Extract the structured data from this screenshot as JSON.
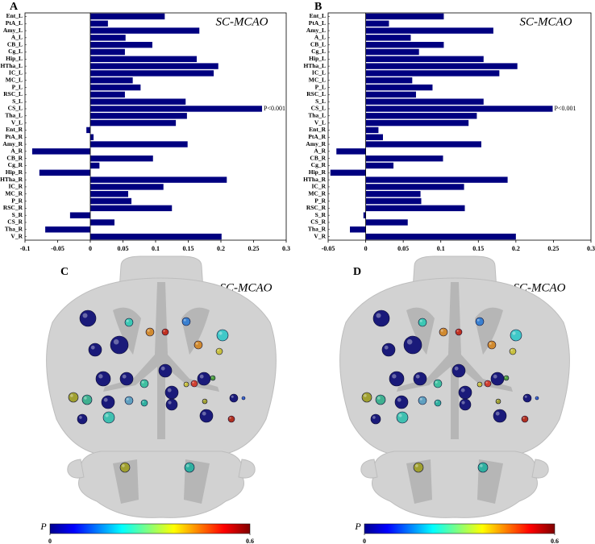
{
  "chart_data": [
    {
      "type": "bar",
      "orientation": "horizontal",
      "panel": "A",
      "annotation": "SC-MCAO",
      "significance": "P<0.001",
      "color": "#000080",
      "categories": [
        "Ent_L",
        "PtA_L",
        "Amy_L",
        "A_L",
        "CB_L",
        "Cg_L",
        "Hip_L",
        "HTha_L",
        "IC_L",
        "MC_L",
        "P_L",
        "RSC_L",
        "S_L",
        "CS_L",
        "Tha_L",
        "V_L",
        "Ent_R",
        "PtA_R",
        "Amy_R",
        "A_R",
        "CB_R",
        "Cg_R",
        "Hip_R",
        "HTha_R",
        "IC_R",
        "MC_R",
        "P_R",
        "RSC_R",
        "S_R",
        "CS_R",
        "Tha_R",
        "V_R"
      ],
      "values": [
        0.114,
        0.027,
        0.167,
        0.054,
        0.095,
        0.053,
        0.163,
        0.196,
        0.189,
        0.065,
        0.077,
        0.053,
        0.146,
        0.263,
        0.148,
        0.131,
        -0.006,
        0.005,
        0.149,
        -0.089,
        0.096,
        0.014,
        -0.078,
        0.209,
        0.112,
        0.058,
        0.063,
        0.125,
        -0.031,
        0.037,
        -0.069,
        0.201
      ],
      "xlim": [
        -0.1,
        0.3
      ],
      "xticks": [
        -0.1,
        -0.05,
        0,
        0.05,
        0.1,
        0.15,
        0.2,
        0.25,
        0.3
      ]
    },
    {
      "type": "bar",
      "orientation": "horizontal",
      "panel": "B",
      "annotation": "SC-MCAO",
      "significance": "P<0.001",
      "color": "#000080",
      "categories": [
        "Ent_L",
        "PtA_L",
        "Amy_L",
        "A_L",
        "CB_L",
        "Cg_L",
        "Hip_L",
        "HTha_L",
        "IC_L",
        "MC_L",
        "P_L",
        "RSC_L",
        "S_L",
        "CS_L",
        "Tha_L",
        "V_L",
        "Ent_R",
        "PtA_R",
        "Amy_R",
        "A_R",
        "CB_R",
        "Cg_R",
        "Hip_R",
        "HTha_R",
        "IC_R",
        "MC_R",
        "P_R",
        "RSC_R",
        "S_R",
        "CS_R",
        "Tha_R",
        "V_R"
      ],
      "values": [
        0.104,
        0.031,
        0.17,
        0.06,
        0.104,
        0.071,
        0.157,
        0.202,
        0.178,
        0.062,
        0.089,
        0.067,
        0.157,
        0.249,
        0.148,
        0.137,
        0.017,
        0.023,
        0.154,
        -0.039,
        0.103,
        0.037,
        -0.047,
        0.189,
        0.131,
        0.073,
        0.074,
        0.132,
        -0.003,
        0.056,
        -0.021,
        0.2
      ],
      "xlim": [
        -0.05,
        0.3
      ],
      "xticks": [
        -0.05,
        0,
        0.05,
        0.1,
        0.15,
        0.2,
        0.25,
        0.3
      ]
    },
    {
      "type": "brain",
      "panel": "C",
      "annotation": "SC-MCAO",
      "colorbar_label": "P",
      "clim": [
        0,
        0.6
      ],
      "cticks": [
        0,
        0.6
      ]
    },
    {
      "type": "brain",
      "panel": "D",
      "annotation": "SC-MCAO",
      "colorbar_label": "P",
      "clim": [
        0,
        0.6
      ],
      "cticks": [
        0,
        0.6
      ]
    }
  ]
}
